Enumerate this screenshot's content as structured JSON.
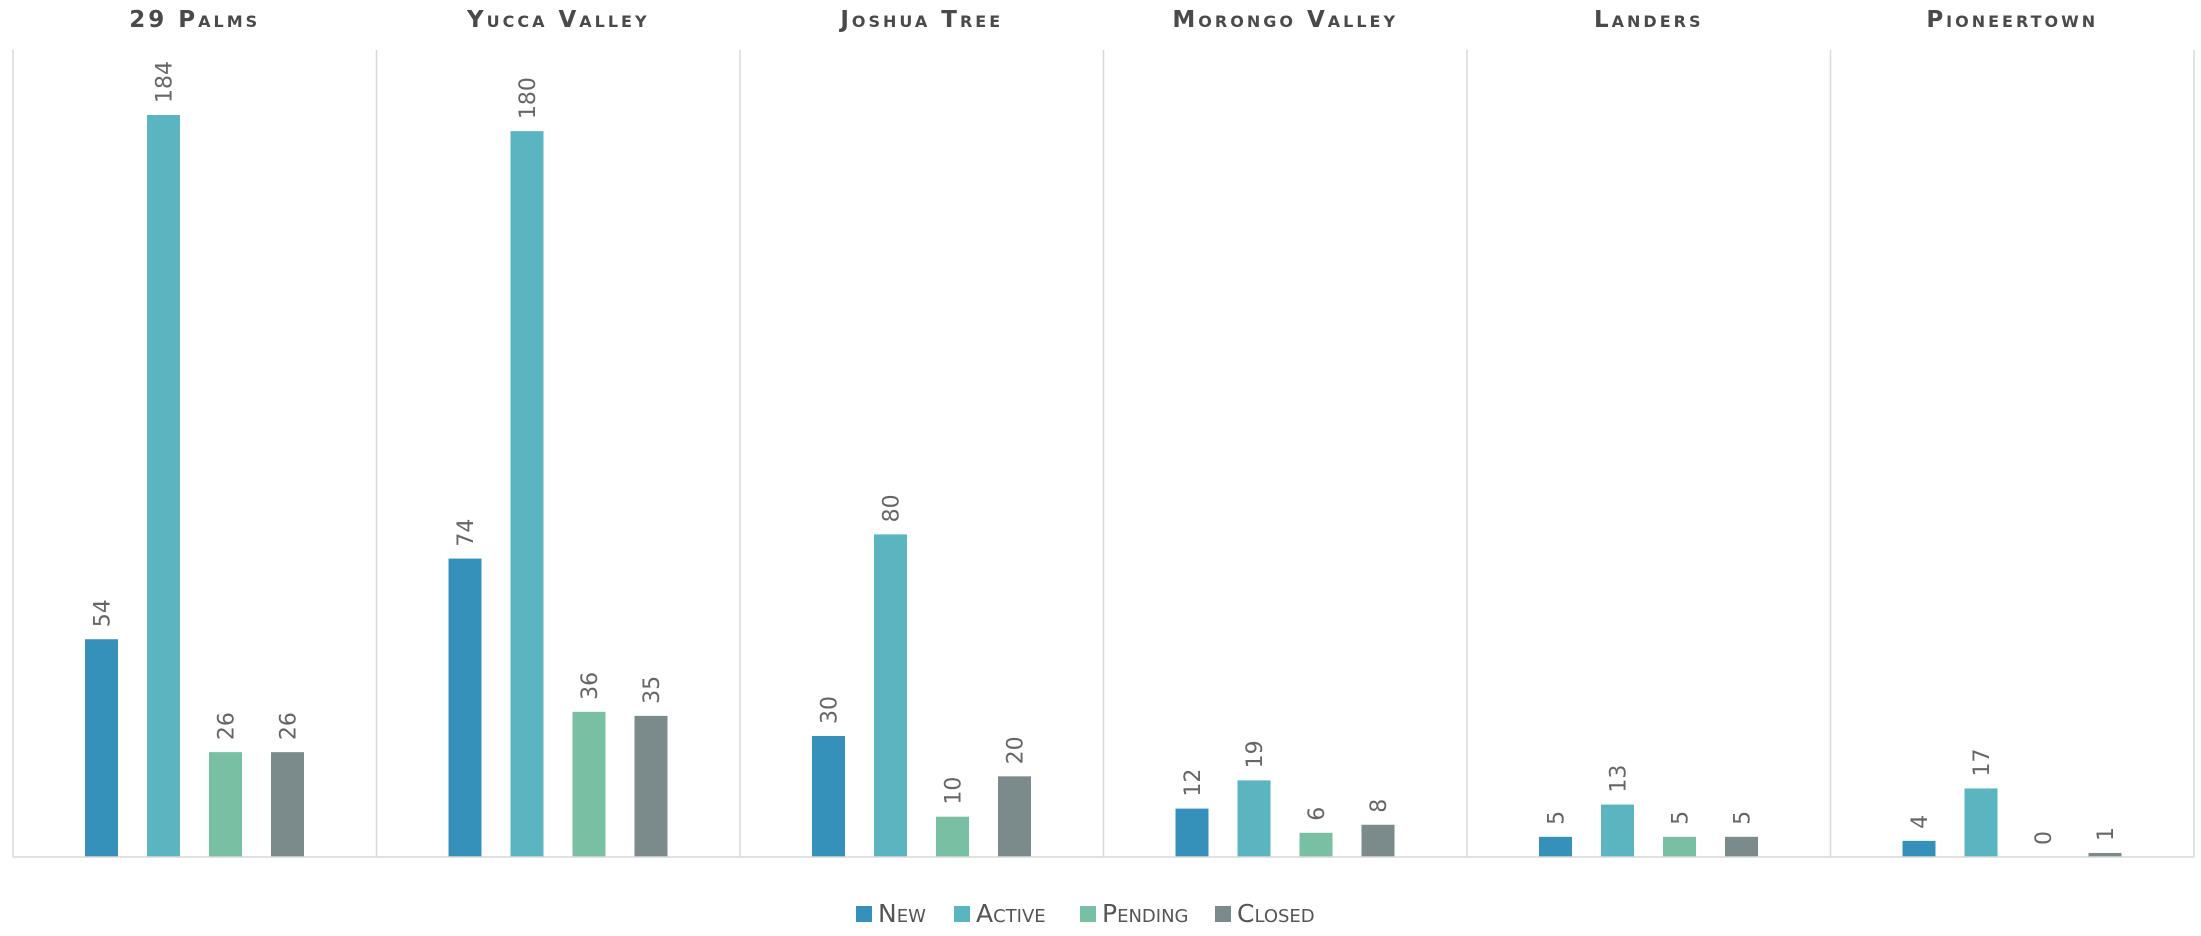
{
  "chart_data": {
    "type": "bar",
    "categories": [
      "29 Palms",
      "Yucca Valley",
      "Joshua Tree",
      "Morongo Valley",
      "Landers",
      "Pioneertown"
    ],
    "series": [
      {
        "name": "New",
        "values": [
          54,
          74,
          30,
          12,
          5,
          4
        ]
      },
      {
        "name": "Active",
        "values": [
          184,
          180,
          80,
          19,
          13,
          17
        ]
      },
      {
        "name": "Pending",
        "values": [
          26,
          36,
          10,
          6,
          5,
          0
        ]
      },
      {
        "name": "Closed",
        "values": [
          26,
          35,
          20,
          8,
          5,
          1
        ]
      }
    ],
    "colors": [
      "#3591b9",
      "#5ab5c1",
      "#78bfa4",
      "#7b8a8b"
    ],
    "ylim": [
      0,
      200
    ],
    "legend_position": "bottom",
    "grid": false,
    "data_labels": true
  }
}
